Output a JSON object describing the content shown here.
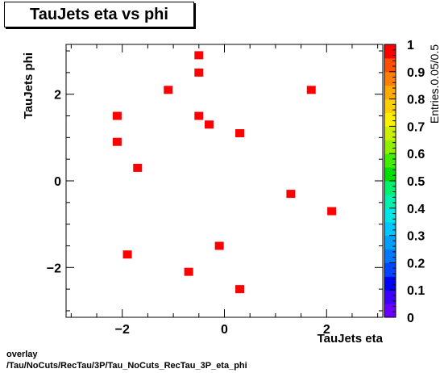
{
  "title": "TauJets eta vs phi",
  "footer": {
    "line1": "overlay",
    "line2": "/Tau/NoCuts/RecTau/3P/Tau_NoCuts_RecTau_3P_eta_phi"
  },
  "chart_data": {
    "type": "heatmap",
    "title": "TauJets eta vs phi",
    "xlabel": "TauJets eta",
    "ylabel": "TauJets phi",
    "zlabel": "Entries.0.05/0.5",
    "xlim": [
      -3.1,
      3.1
    ],
    "ylim": [
      -3.15,
      3.15
    ],
    "zlim": [
      0,
      1
    ],
    "x_tick_labels": [
      "−2",
      "0",
      "2"
    ],
    "y_tick_labels": [
      "−2",
      "0",
      "2"
    ],
    "z_tick_labels": [
      "0",
      "0.1",
      "0.2",
      "0.3",
      "0.4",
      "0.5",
      "0.6",
      "0.7",
      "0.8",
      "0.9",
      "1"
    ],
    "marker_color": "#ff0000",
    "points": [
      {
        "x": -0.5,
        "y": 2.9,
        "z": 1
      },
      {
        "x": -0.5,
        "y": 2.5,
        "z": 1
      },
      {
        "x": -1.1,
        "y": 2.1,
        "z": 1
      },
      {
        "x": 1.7,
        "y": 2.1,
        "z": 1
      },
      {
        "x": -2.1,
        "y": 1.5,
        "z": 1
      },
      {
        "x": -0.5,
        "y": 1.5,
        "z": 1
      },
      {
        "x": -0.3,
        "y": 1.3,
        "z": 1
      },
      {
        "x": 0.3,
        "y": 1.1,
        "z": 1
      },
      {
        "x": -2.1,
        "y": 0.9,
        "z": 1
      },
      {
        "x": -1.7,
        "y": 0.3,
        "z": 1
      },
      {
        "x": 1.3,
        "y": -0.3,
        "z": 1
      },
      {
        "x": 2.1,
        "y": -0.7,
        "z": 1
      },
      {
        "x": -0.1,
        "y": -1.5,
        "z": 1
      },
      {
        "x": -1.9,
        "y": -1.7,
        "z": 1
      },
      {
        "x": -0.7,
        "y": -2.1,
        "z": 1
      },
      {
        "x": 0.3,
        "y": -2.5,
        "z": 1
      }
    ],
    "palette": [
      "#6a00ff",
      "#3b00ff",
      "#0000ff",
      "#0044ff",
      "#0077ff",
      "#00a0ff",
      "#00c8ff",
      "#00e6e6",
      "#00f0b0",
      "#00f070",
      "#00e000",
      "#40ee00",
      "#90f000",
      "#ccf000",
      "#fff000",
      "#ffd000",
      "#ffaa00",
      "#ff8000",
      "#ff5000",
      "#ff0000"
    ],
    "grid": false,
    "legend": "color-bar-right"
  }
}
